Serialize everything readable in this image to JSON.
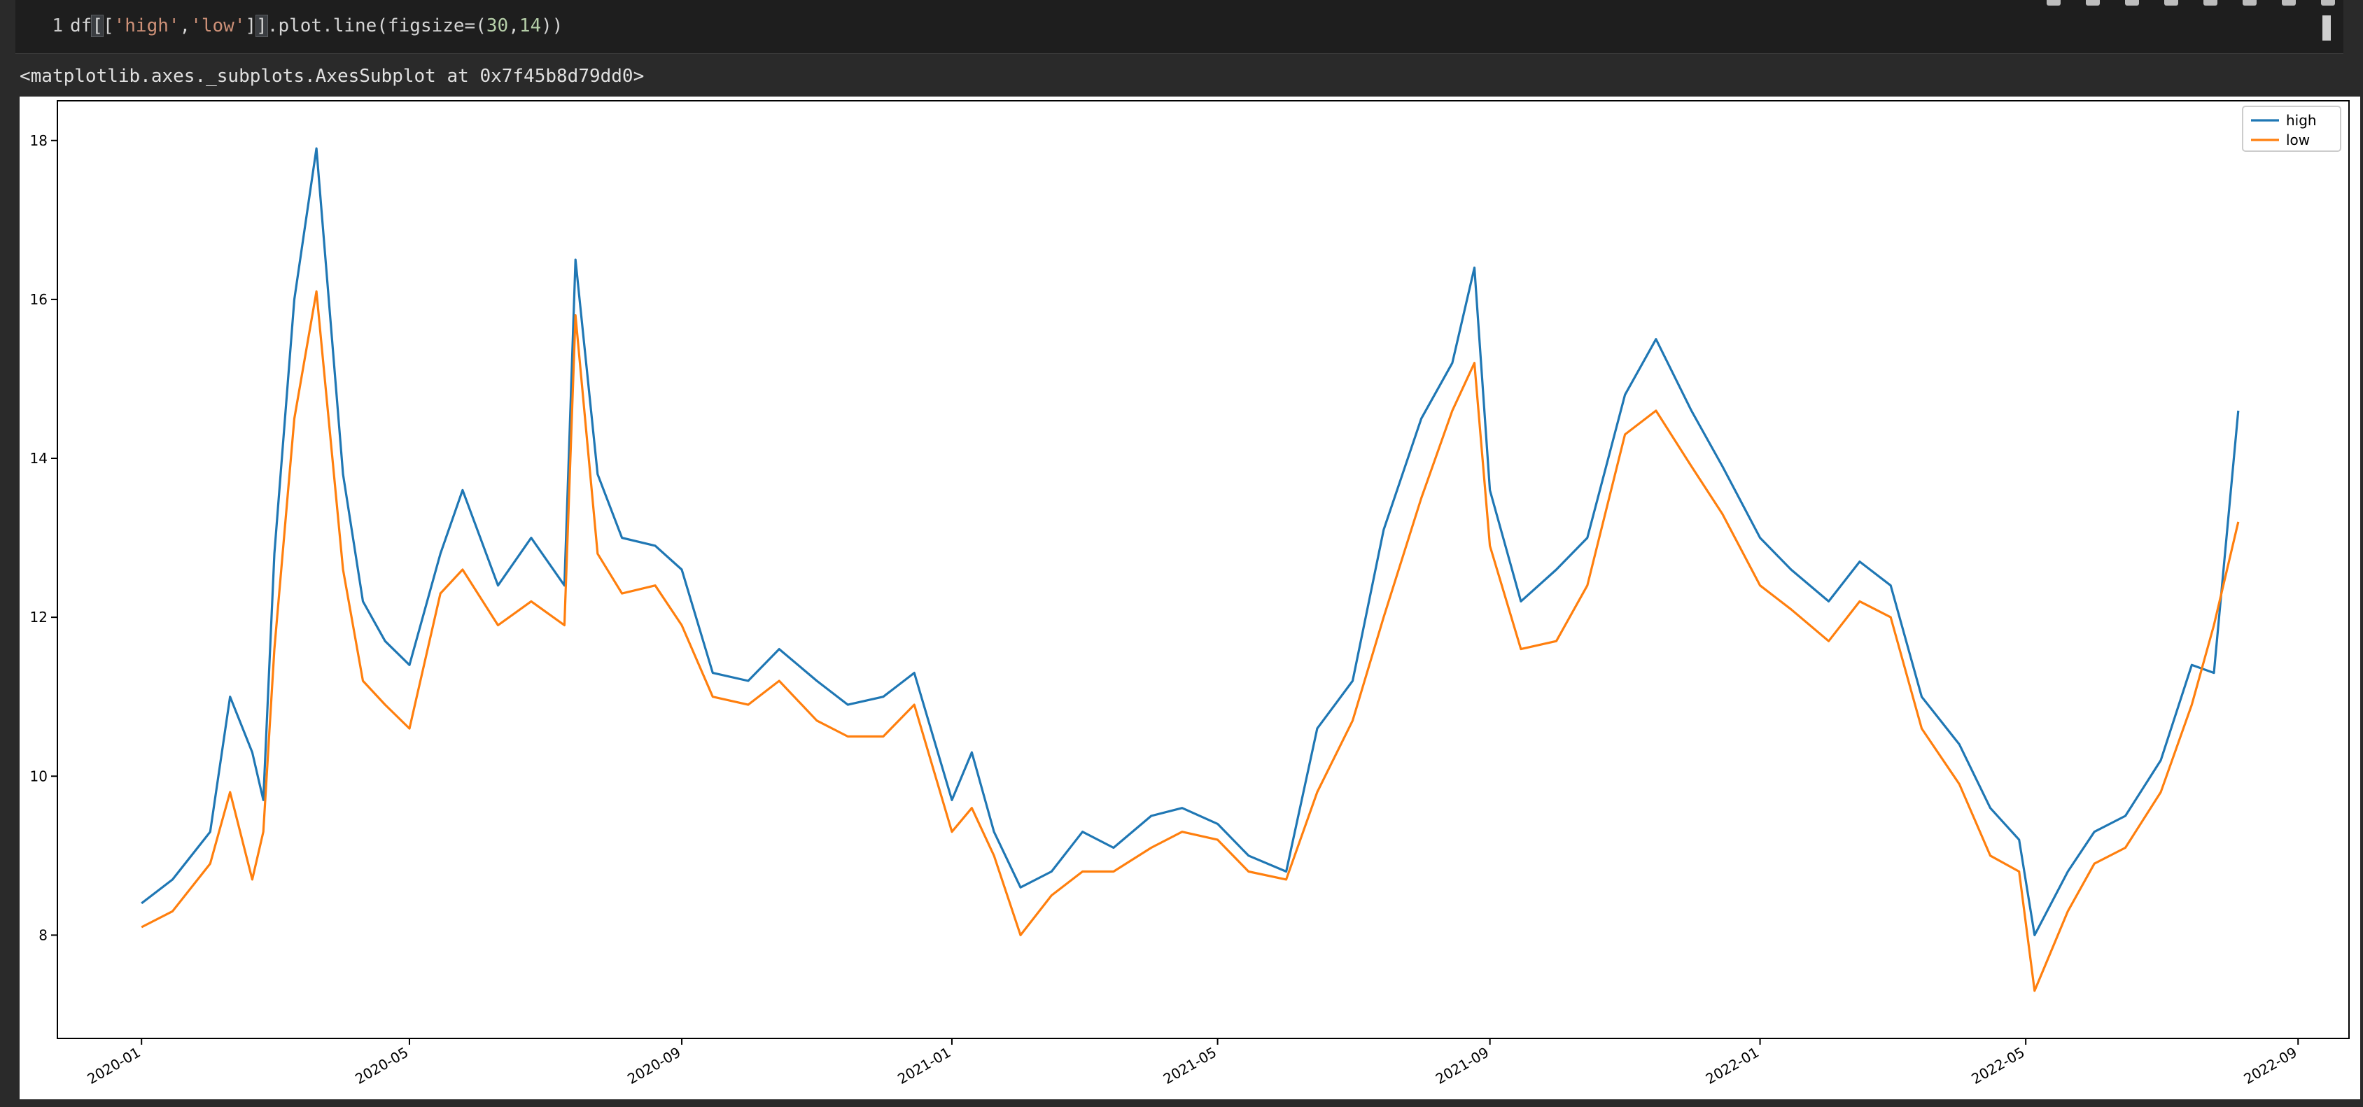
{
  "cell": {
    "line_number": "1",
    "code": {
      "p1": "df",
      "p2": "[",
      "p3": "[",
      "s1": "'high'",
      "comma": ",",
      "s2": "'low'",
      "p4": "]",
      "p5": "]",
      "p6": ".plot.line(figsize=(",
      "n1": "30",
      "comma2": ",",
      "n2": "14",
      "p7": "))"
    },
    "output_text": "<matplotlib.axes._subplots.AxesSubplot at 0x7f45b8d79dd0>"
  },
  "chart_data": {
    "type": "line",
    "xlabel": "",
    "ylabel": "",
    "x_ticks": [
      "2020-01",
      "2020-05",
      "2020-09",
      "2021-01",
      "2021-05",
      "2021-09",
      "2022-01",
      "2022-05",
      "2022-09"
    ],
    "y_ticks": [
      8,
      10,
      12,
      14,
      16,
      18
    ],
    "xlim": [
      "2019-11-24",
      "2022-09-24"
    ],
    "ylim": [
      6.7,
      18.5
    ],
    "grid": false,
    "legend": "top-right",
    "colors": {
      "high": "#1f77b4",
      "low": "#ff7f0e"
    },
    "x": [
      "2020-01-01",
      "2020-01-15",
      "2020-02-01",
      "2020-02-10",
      "2020-02-20",
      "2020-02-25",
      "2020-03-01",
      "2020-03-10",
      "2020-03-20",
      "2020-04-01",
      "2020-04-10",
      "2020-04-20",
      "2020-05-01",
      "2020-05-15",
      "2020-05-25",
      "2020-06-10",
      "2020-06-25",
      "2020-07-10",
      "2020-07-15",
      "2020-07-25",
      "2020-08-05",
      "2020-08-20",
      "2020-09-01",
      "2020-09-15",
      "2020-10-01",
      "2020-10-15",
      "2020-11-01",
      "2020-11-15",
      "2020-12-01",
      "2020-12-15",
      "2021-01-01",
      "2021-01-10",
      "2021-01-20",
      "2021-02-01",
      "2021-02-15",
      "2021-03-01",
      "2021-03-15",
      "2021-04-01",
      "2021-04-15",
      "2021-05-01",
      "2021-05-15",
      "2021-06-01",
      "2021-06-15",
      "2021-07-01",
      "2021-07-15",
      "2021-08-01",
      "2021-08-15",
      "2021-08-25",
      "2021-09-01",
      "2021-09-15",
      "2021-10-01",
      "2021-10-15",
      "2021-11-01",
      "2021-11-15",
      "2021-12-01",
      "2021-12-15",
      "2022-01-01",
      "2022-01-15",
      "2022-02-01",
      "2022-02-15",
      "2022-03-01",
      "2022-03-15",
      "2022-04-01",
      "2022-04-15",
      "2022-04-28",
      "2022-05-05",
      "2022-05-20",
      "2022-06-01",
      "2022-06-15",
      "2022-07-01",
      "2022-07-15",
      "2022-07-25",
      "2022-08-05"
    ],
    "series": [
      {
        "name": "high",
        "values": [
          8.4,
          8.7,
          9.3,
          11.0,
          10.3,
          9.7,
          12.8,
          16.0,
          17.9,
          13.8,
          12.2,
          11.7,
          11.4,
          12.8,
          13.6,
          12.4,
          13.0,
          12.4,
          16.5,
          13.8,
          13.0,
          12.9,
          12.6,
          11.3,
          11.2,
          11.6,
          11.2,
          10.9,
          11.0,
          11.3,
          9.7,
          10.3,
          9.3,
          8.6,
          8.8,
          9.3,
          9.1,
          9.5,
          9.6,
          9.4,
          9.0,
          8.8,
          10.6,
          11.2,
          13.1,
          14.5,
          15.2,
          16.4,
          13.6,
          12.2,
          12.6,
          13.0,
          14.8,
          15.5,
          14.6,
          13.9,
          13.0,
          12.6,
          12.2,
          12.7,
          12.4,
          11.0,
          10.4,
          9.6,
          9.2,
          8.0,
          8.8,
          9.3,
          9.5,
          10.2,
          11.4,
          11.3,
          14.6
        ]
      },
      {
        "name": "low",
        "values": [
          8.1,
          8.3,
          8.9,
          9.8,
          8.7,
          9.3,
          11.6,
          14.5,
          16.1,
          12.6,
          11.2,
          10.9,
          10.6,
          12.3,
          12.6,
          11.9,
          12.2,
          11.9,
          15.8,
          12.8,
          12.3,
          12.4,
          11.9,
          11.0,
          10.9,
          11.2,
          10.7,
          10.5,
          10.5,
          10.9,
          9.3,
          9.6,
          9.0,
          8.0,
          8.5,
          8.8,
          8.8,
          9.1,
          9.3,
          9.2,
          8.8,
          8.7,
          9.8,
          10.7,
          12.0,
          13.5,
          14.6,
          15.2,
          12.9,
          11.6,
          11.7,
          12.4,
          14.3,
          14.6,
          13.9,
          13.3,
          12.4,
          12.1,
          11.7,
          12.2,
          12.0,
          10.6,
          9.9,
          9.0,
          8.8,
          7.3,
          8.3,
          8.9,
          9.1,
          9.8,
          10.9,
          11.9,
          13.2
        ]
      }
    ]
  }
}
